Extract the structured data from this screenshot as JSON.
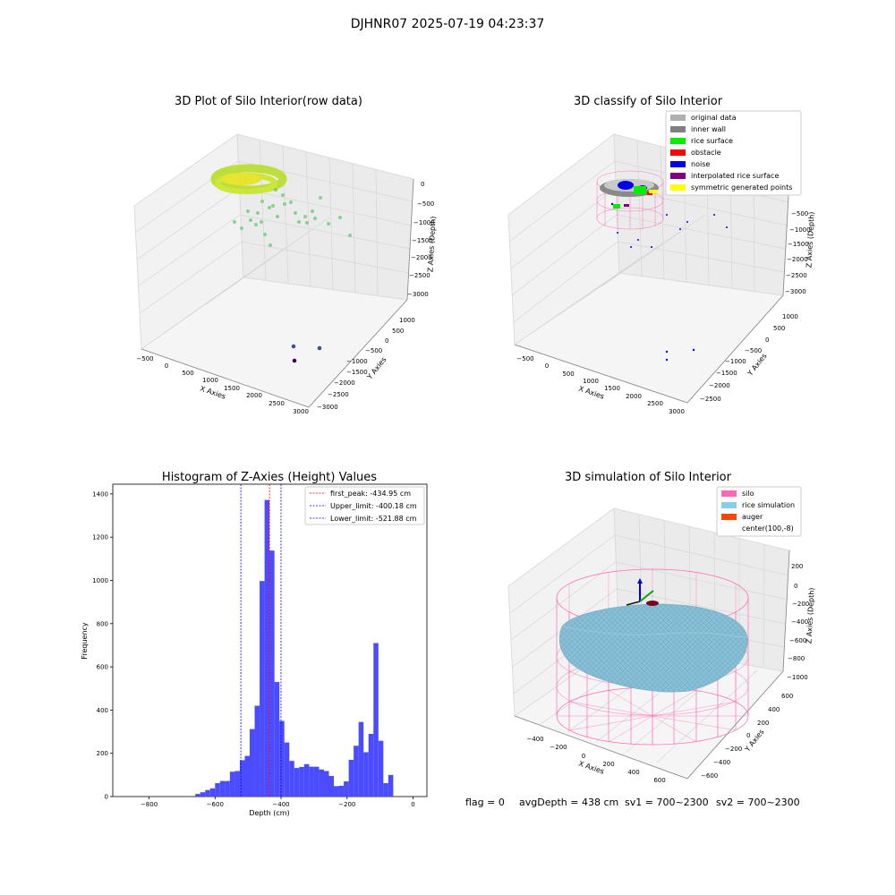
{
  "figure": {
    "suptitle": "DJHNR07 2025-07-19 04:23:37",
    "footer": {
      "flag": "flag = 0",
      "avg_depth": "avgDepth = 438 cm",
      "sv1": "sv1 = 700~2300",
      "sv2": "sv2 = 700~2300"
    }
  },
  "chart_data": [
    {
      "type": "scatter",
      "projection": "3d",
      "title": "3D Plot of Silo Interior(row data)",
      "xlabel": "X Axies",
      "ylabel": "Y Axies",
      "zlabel": "Z Axies (Depth)",
      "x_ticks": [
        "−500",
        "0",
        "500",
        "1000",
        "1500",
        "2000",
        "2500",
        "3000"
      ],
      "y_ticks": [
        "1000",
        "500",
        "0",
        "−500",
        "−1000",
        "−1500",
        "−2000",
        "−2500",
        "−3000"
      ],
      "z_ticks": [
        "0",
        "−500",
        "−1000",
        "−1500",
        "−2000",
        "−2500",
        "−3000"
      ],
      "colormap": "viridis",
      "grid": true
    },
    {
      "type": "scatter",
      "projection": "3d",
      "title": "3D classify of Silo Interior",
      "xlabel": "X Axies",
      "ylabel": "Y Axies",
      "zlabel": "Z Axies (Depth)",
      "x_ticks": [
        "−500",
        "0",
        "500",
        "1000",
        "1500",
        "2000",
        "2500",
        "3000"
      ],
      "y_ticks": [
        "1000",
        "500",
        "0",
        "−500",
        "−1000",
        "−1500",
        "−2000",
        "−2500"
      ],
      "z_ticks": [
        "0",
        "−500",
        "−1000",
        "−1500",
        "−2000",
        "−2500",
        "−3000"
      ],
      "legend_position": "top-right",
      "legend": [
        {
          "name": "original data",
          "color": "#b0b0b0"
        },
        {
          "name": "inner wall",
          "color": "#808080"
        },
        {
          "name": "rice surface",
          "color": "#00ee00"
        },
        {
          "name": "obstacle",
          "color": "#ff0000"
        },
        {
          "name": "noise",
          "color": "#0000ee"
        },
        {
          "name": "interpolated rice surface",
          "color": "#800080"
        },
        {
          "name": "symmetric generated points",
          "color": "#ffff00"
        }
      ],
      "grid": true
    },
    {
      "type": "bar",
      "title": "Histogram of Z-Axies (Height) Values",
      "xlabel": "Depth (cm)",
      "ylabel": "Frequency",
      "xlim": [
        -910,
        42
      ],
      "ylim": [
        0,
        1445
      ],
      "x_ticks": [
        {
          "v": -800,
          "label": "−800"
        },
        {
          "v": -600,
          "label": "−600"
        },
        {
          "v": -400,
          "label": "−400"
        },
        {
          "v": -200,
          "label": "−200"
        },
        {
          "v": 0,
          "label": "0"
        }
      ],
      "y_ticks": [
        {
          "v": 0,
          "label": "0"
        },
        {
          "v": 200,
          "label": "200"
        },
        {
          "v": 400,
          "label": "400"
        },
        {
          "v": 600,
          "label": "600"
        },
        {
          "v": 800,
          "label": "800"
        },
        {
          "v": 1000,
          "label": "1000"
        },
        {
          "v": 1200,
          "label": "1200"
        },
        {
          "v": 1400,
          "label": "1400"
        }
      ],
      "bar_color": "#4b4bff",
      "bin_width": 15,
      "bins": [
        {
          "x": -660,
          "y": 12
        },
        {
          "x": -645,
          "y": 20
        },
        {
          "x": -630,
          "y": 30
        },
        {
          "x": -615,
          "y": 38
        },
        {
          "x": -600,
          "y": 62
        },
        {
          "x": -585,
          "y": 72
        },
        {
          "x": -570,
          "y": 72
        },
        {
          "x": -555,
          "y": 115
        },
        {
          "x": -540,
          "y": 118
        },
        {
          "x": -525,
          "y": 168
        },
        {
          "x": -510,
          "y": 188
        },
        {
          "x": -495,
          "y": 312
        },
        {
          "x": -480,
          "y": 420
        },
        {
          "x": -465,
          "y": 997
        },
        {
          "x": -450,
          "y": 1372
        },
        {
          "x": -435,
          "y": 1138
        },
        {
          "x": -420,
          "y": 530
        },
        {
          "x": -405,
          "y": 350
        },
        {
          "x": -390,
          "y": 250
        },
        {
          "x": -375,
          "y": 165
        },
        {
          "x": -360,
          "y": 132
        },
        {
          "x": -345,
          "y": 137
        },
        {
          "x": -330,
          "y": 150
        },
        {
          "x": -315,
          "y": 138
        },
        {
          "x": -300,
          "y": 138
        },
        {
          "x": -285,
          "y": 125
        },
        {
          "x": -270,
          "y": 118
        },
        {
          "x": -255,
          "y": 95
        },
        {
          "x": -240,
          "y": 48
        },
        {
          "x": -225,
          "y": 50
        },
        {
          "x": -210,
          "y": 70
        },
        {
          "x": -195,
          "y": 170
        },
        {
          "x": -180,
          "y": 235
        },
        {
          "x": -165,
          "y": 345
        },
        {
          "x": -150,
          "y": 205
        },
        {
          "x": -135,
          "y": 290
        },
        {
          "x": -120,
          "y": 710
        },
        {
          "x": -105,
          "y": 258
        },
        {
          "x": -90,
          "y": 62
        },
        {
          "x": -75,
          "y": 100
        }
      ],
      "vlines": [
        {
          "x": -434.95,
          "color": "#ff0000",
          "label": "first_peak: -434.95 cm"
        },
        {
          "x": -400.18,
          "color": "#0000ff",
          "label": "Upper_limit: -400.18 cm"
        },
        {
          "x": -521.88,
          "color": "#0000ff",
          "label": "Lower_limit: -521.88 cm"
        }
      ],
      "legend_position": "top-right"
    },
    {
      "type": "surface",
      "projection": "3d",
      "title": "3D simulation of Silo Interior",
      "xlabel": "X Axies",
      "ylabel": "Y Axies",
      "zlabel": "Z Axies (Depth)",
      "x_ticks": [
        "−400",
        "−200",
        "0",
        "200",
        "400",
        "600"
      ],
      "y_ticks": [
        "600",
        "400",
        "200",
        "0",
        "−200",
        "−400",
        "−600"
      ],
      "z_ticks": [
        "200",
        "0",
        "−200",
        "−400",
        "−600",
        "−800",
        "−1000"
      ],
      "legend_position": "top-right",
      "legend": [
        {
          "name": "silo",
          "color": "#ff69b4"
        },
        {
          "name": "rice simulation",
          "color": "#87ceeb"
        },
        {
          "name": "auger",
          "color": "#ff4500"
        },
        {
          "name": "center(100,-8)",
          "color": "none"
        }
      ],
      "grid": true
    }
  ]
}
